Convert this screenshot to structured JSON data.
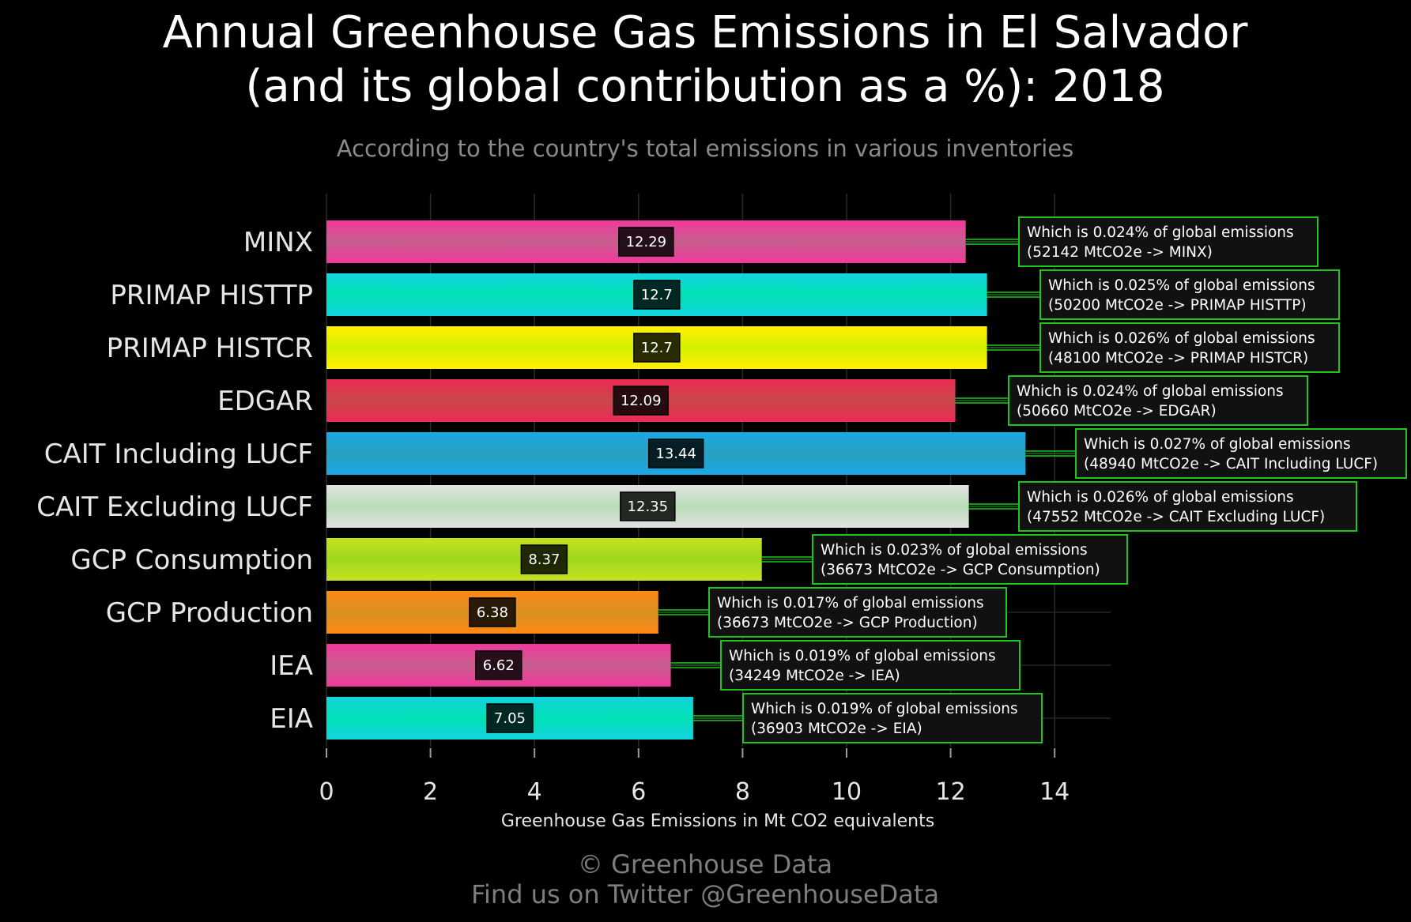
{
  "chart_data": {
    "type": "bar",
    "orientation": "horizontal",
    "title": [
      "Annual Greenhouse Gas Emissions in El Salvador",
      "(and its global contribution as a %): 2018"
    ],
    "subtitle": "According to the country's total emissions in various inventories",
    "xlabel": "Greenhouse Gas Emissions in Mt CO2 equivalents",
    "ylabel": "",
    "xlim": [
      0,
      15
    ],
    "xticks": [
      0,
      2,
      4,
      6,
      8,
      10,
      12,
      14
    ],
    "grid": true,
    "categories": [
      "MINX",
      "PRIMAP HISTTP",
      "PRIMAP HISTCR",
      "EDGAR",
      "CAIT Including LUCF",
      "CAIT Excluding LUCF",
      "GCP Consumption",
      "GCP Production",
      "IEA",
      "EIA"
    ],
    "values": [
      12.29,
      12.7,
      12.7,
      12.09,
      13.44,
      12.35,
      8.37,
      6.38,
      6.62,
      7.05
    ],
    "value_labels": [
      "12.29",
      "12.7",
      "12.7",
      "12.09",
      "13.44",
      "12.35",
      "8.37",
      "6.38",
      "6.62",
      "7.05"
    ],
    "annotations": [
      {
        "line1": "Which is 0.024% of global emissions",
        "line2": "(52142 MtCO2e -> MINX)"
      },
      {
        "line1": "Which is 0.025% of global emissions",
        "line2": "(50200 MtCO2e -> PRIMAP HISTTP)"
      },
      {
        "line1": "Which is 0.026% of global emissions",
        "line2": "(48100 MtCO2e -> PRIMAP HISTCR)"
      },
      {
        "line1": "Which is 0.024% of global emissions",
        "line2": "(50660 MtCO2e -> EDGAR)"
      },
      {
        "line1": "Which is 0.027% of global emissions",
        "line2": "(48940 MtCO2e -> CAIT Including LUCF)"
      },
      {
        "line1": "Which is 0.026% of global emissions",
        "line2": "(47552 MtCO2e -> CAIT Excluding LUCF)"
      },
      {
        "line1": "Which is 0.023% of global emissions",
        "line2": "(36673 MtCO2e -> GCP Consumption)"
      },
      {
        "line1": "Which is 0.017% of global emissions",
        "line2": "(36673 MtCO2e -> GCP Production)"
      },
      {
        "line1": "Which is 0.019% of global emissions",
        "line2": "(34249 MtCO2e -> IEA)"
      },
      {
        "line1": "Which is 0.019% of global emissions",
        "line2": "(36903 MtCO2e -> EIA)"
      }
    ],
    "bar_colors": [
      [
        "#f2389c",
        "#c85f8f"
      ],
      [
        "#12d4e0",
        "#00e0b4"
      ],
      [
        "#fff000",
        "#d4f000"
      ],
      [
        "#ee2a55",
        "#c8484a"
      ],
      [
        "#1aa8e6",
        "#28a0c0"
      ],
      [
        "#e2e2e2",
        "#b8dcb8"
      ],
      [
        "#c8e020",
        "#9ed81e"
      ],
      [
        "#ff8818",
        "#d8901e"
      ],
      [
        "#f2389c",
        "#c85f8f"
      ],
      [
        "#12d4e0",
        "#00e0b4"
      ]
    ],
    "annotation_border_color": "#1fc41f"
  },
  "footer": {
    "line1": "© Greenhouse Data",
    "line2": "Find us on Twitter @GreenhouseData"
  }
}
